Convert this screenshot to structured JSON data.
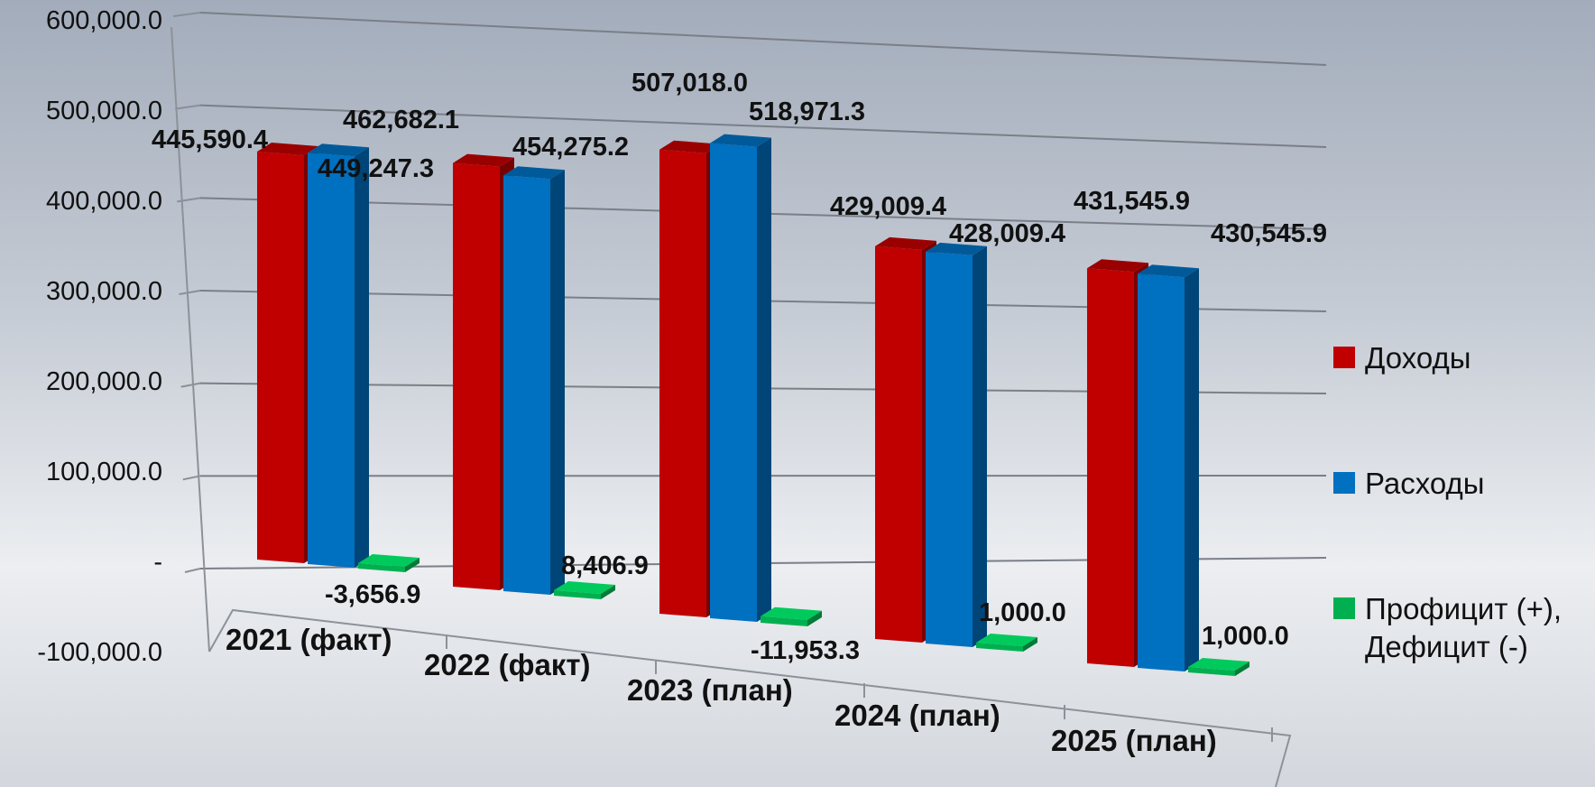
{
  "chart_data": {
    "type": "bar",
    "categories": [
      "2021 (факт)",
      "2022 (факт)",
      "2023 (план)",
      "2024 (план)",
      "2025 (план)"
    ],
    "series": [
      {
        "name": "Доходы",
        "color": "#c00000",
        "values": [
          445590.4,
          462682.1,
          507018.0,
          429009.4,
          431545.9
        ]
      },
      {
        "name": "Расходы",
        "color": "#0070c0",
        "values": [
          449247.3,
          454275.2,
          518971.3,
          428009.4,
          430545.9
        ]
      },
      {
        "name": "Профицит (+), Дефицит (-)",
        "name_lines": [
          "Профицит (+),",
          "Дефицит (-)"
        ],
        "color": "#00b050",
        "values": [
          -3656.9,
          8406.9,
          -11953.3,
          1000.0,
          1000.0
        ]
      }
    ],
    "data_labels": [
      [
        "445,590.4",
        "462,682.1",
        "507,018.0",
        "429,009.4",
        "431,545.9"
      ],
      [
        "449,247.3",
        "454,275.2",
        "518,971.3",
        "428,009.4",
        "430,545.9"
      ],
      [
        "-3,656.9",
        "8,406.9",
        "-11,953.3",
        "1,000.0",
        "1,000.0"
      ]
    ],
    "y_ticks": [
      {
        "value": 600000,
        "label": "600,000.0"
      },
      {
        "value": 500000,
        "label": "500,000.0"
      },
      {
        "value": 400000,
        "label": "400,000.0"
      },
      {
        "value": 300000,
        "label": "300,000.0"
      },
      {
        "value": 200000,
        "label": "200,000.0"
      },
      {
        "value": 100000,
        "label": "100,000.0"
      },
      {
        "value": 0,
        "label": "-"
      },
      {
        "value": -100000,
        "label": "-100,000.0"
      }
    ],
    "ylim": [
      -100000,
      600000
    ],
    "style": "3d-clustered-column",
    "grid": true,
    "legend": "right"
  }
}
